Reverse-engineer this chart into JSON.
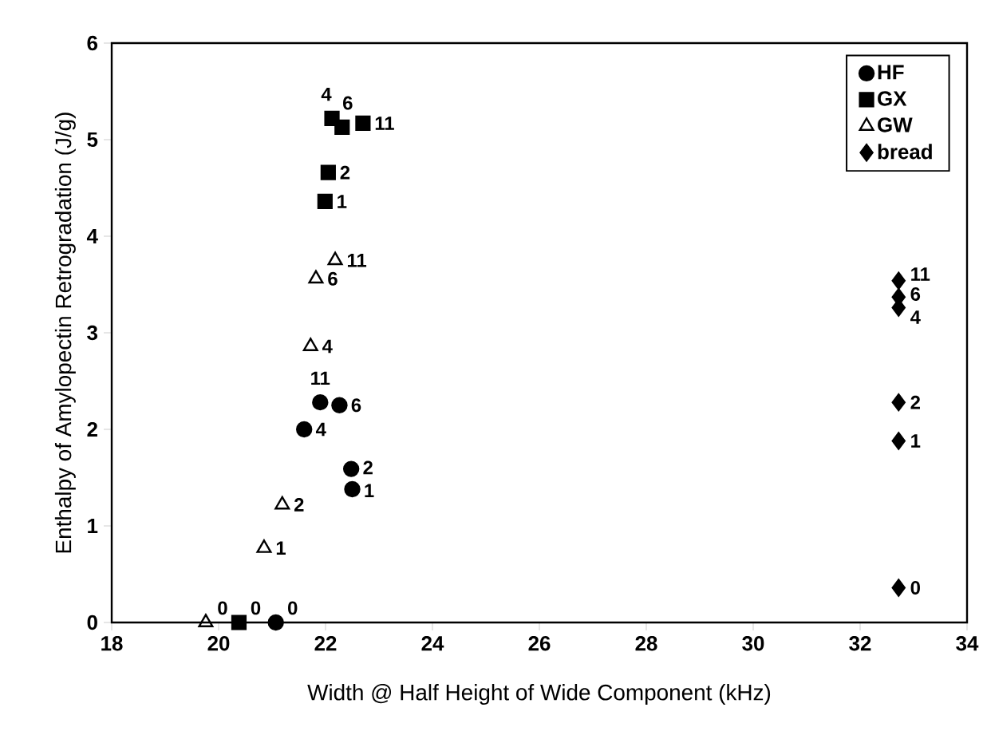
{
  "chart_data": {
    "type": "scatter",
    "xlabel": "Width @ Half Height of Wide Component  (kHz)",
    "ylabel": "Enthalpy of Amylopectin Retrogradation (J/g)",
    "xlim": [
      18,
      34
    ],
    "xticks": [
      18,
      20,
      22,
      24,
      26,
      28,
      30,
      32,
      34
    ],
    "ylim": [
      0,
      6
    ],
    "yticks": [
      0,
      1,
      2,
      3,
      4,
      5,
      6
    ],
    "grid": false,
    "legend": "top right",
    "series": [
      {
        "name": "HF",
        "color": "#000000",
        "marker": "circle",
        "x": [
          21.07,
          22.5,
          22.48,
          21.6,
          22.26,
          21.9
        ],
        "values": [
          0,
          1.38,
          1.59,
          2.0,
          2.25,
          2.28
        ]
      },
      {
        "name": "GX",
        "color": "#000000",
        "marker": "square",
        "x": [
          20.38,
          21.99,
          22.05,
          22.12,
          22.31,
          22.7
        ],
        "values": [
          0,
          4.36,
          4.66,
          5.22,
          5.13,
          5.17
        ]
      },
      {
        "name": "GW",
        "color": "#000000",
        "marker": "triangle",
        "x": [
          19.76,
          20.85,
          21.19,
          21.72,
          21.82,
          22.18
        ],
        "values": [
          0,
          0.77,
          1.22,
          2.86,
          3.56,
          3.75
        ]
      },
      {
        "name": "bread",
        "color": "#000000",
        "marker": "diamond",
        "x": [
          32.72,
          32.72,
          32.72,
          32.72,
          32.72,
          32.72
        ],
        "values": [
          0.36,
          1.88,
          2.28,
          3.26,
          3.37,
          3.54
        ]
      }
    ],
    "annotations": [
      {
        "text": "0",
        "x": 21.07,
        "y": 0
      },
      {
        "text": "1",
        "x": 22.5,
        "y": 1.38
      },
      {
        "text": "2",
        "x": 22.48,
        "y": 1.59
      },
      {
        "text": "4",
        "x": 21.6,
        "y": 2.0
      },
      {
        "text": "6",
        "x": 22.26,
        "y": 2.25
      },
      {
        "text": "11",
        "x": 21.9,
        "y": 2.28
      },
      {
        "text": "0",
        "x": 20.38,
        "y": 0
      },
      {
        "text": "1",
        "x": 21.99,
        "y": 4.36
      },
      {
        "text": "2",
        "x": 22.05,
        "y": 4.66
      },
      {
        "text": "4",
        "x": 22.12,
        "y": 5.22
      },
      {
        "text": "6",
        "x": 22.31,
        "y": 5.13
      },
      {
        "text": "11",
        "x": 22.7,
        "y": 5.17
      },
      {
        "text": "0",
        "x": 19.76,
        "y": 0
      },
      {
        "text": "1",
        "x": 20.85,
        "y": 0.77
      },
      {
        "text": "2",
        "x": 21.19,
        "y": 1.22
      },
      {
        "text": "4",
        "x": 21.72,
        "y": 2.86
      },
      {
        "text": "6",
        "x": 21.82,
        "y": 3.56
      },
      {
        "text": "11",
        "x": 22.18,
        "y": 3.75
      },
      {
        "text": "0",
        "x": 32.72,
        "y": 0.36
      },
      {
        "text": "1",
        "x": 32.72,
        "y": 1.88
      },
      {
        "text": "2",
        "x": 32.72,
        "y": 2.28
      },
      {
        "text": "4",
        "x": 32.72,
        "y": 3.26
      },
      {
        "text": "6",
        "x": 32.72,
        "y": 3.37
      },
      {
        "text": "11",
        "x": 32.72,
        "y": 3.54
      }
    ]
  }
}
